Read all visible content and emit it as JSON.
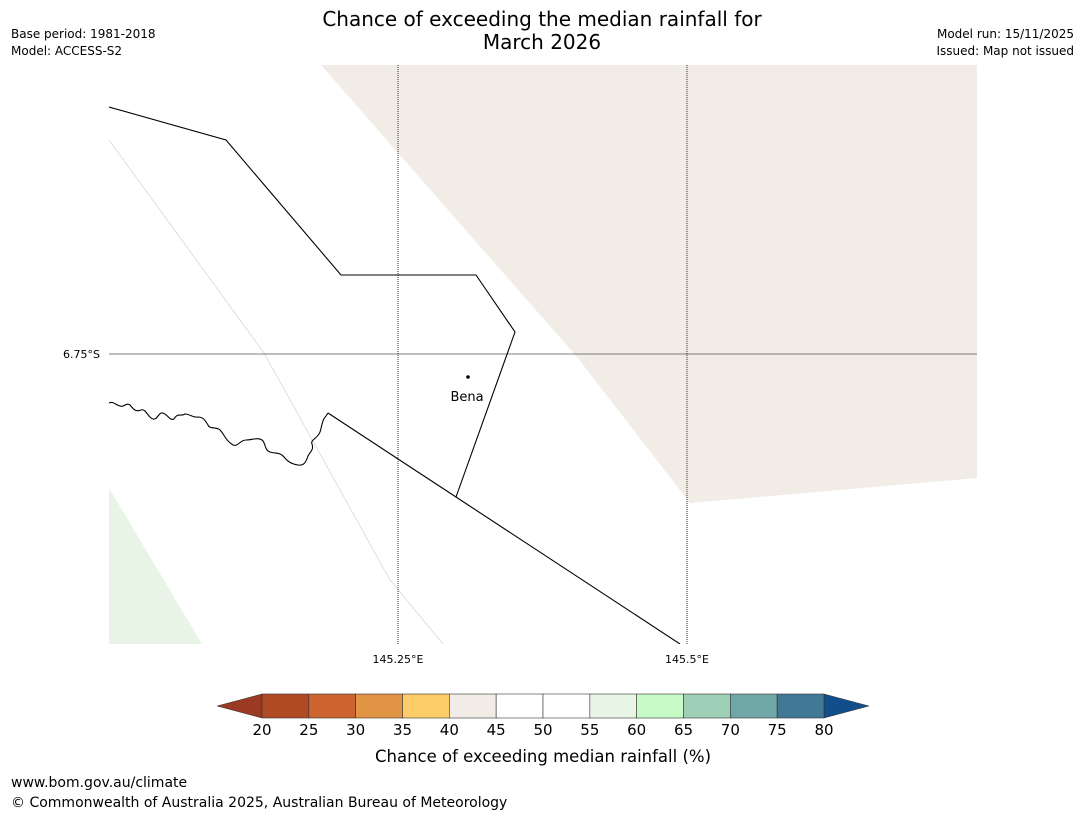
{
  "title": {
    "line1": "Chance of exceeding the median rainfall for",
    "line2": "March 2026"
  },
  "meta_left": {
    "base_period": "Base period: 1981-2018",
    "model": "Model: ACCESS-S2"
  },
  "meta_right": {
    "model_run": "Model run: 15/11/2025",
    "issued": "Issued: Map not issued"
  },
  "map": {
    "lat_label": "6.75°S",
    "lon_labels": [
      "145.25°E",
      "145.5°E"
    ],
    "place": "Bena",
    "colors": {
      "region_40_45": "#f1ece6",
      "region_55_60": "#e8f4e6",
      "boundary": "#000000",
      "graticule": "#000000"
    }
  },
  "colorbar": {
    "ticks": [
      "20",
      "25",
      "30",
      "35",
      "40",
      "45",
      "50",
      "55",
      "60",
      "65",
      "70",
      "75",
      "80"
    ],
    "below_color": "#9a3a22",
    "above_color": "#114e8b",
    "bins": [
      {
        "range": "20-25",
        "color": "#b04a25"
      },
      {
        "range": "25-30",
        "color": "#cd6330"
      },
      {
        "range": "30-35",
        "color": "#e19444"
      },
      {
        "range": "35-40",
        "color": "#fdcd6a"
      },
      {
        "range": "40-45",
        "color": "#f1ece6"
      },
      {
        "range": "45-50",
        "color": "#ffffff"
      },
      {
        "range": "50-55",
        "color": "#ffffff"
      },
      {
        "range": "55-60",
        "color": "#e8f4e6"
      },
      {
        "range": "60-65",
        "color": "#c7fac6"
      },
      {
        "range": "65-70",
        "color": "#9ed0b7"
      },
      {
        "range": "70-75",
        "color": "#6fa6a6"
      },
      {
        "range": "75-80",
        "color": "#417896"
      }
    ],
    "label": "Chance of exceeding median rainfall (%)"
  },
  "footer": {
    "url": "www.bom.gov.au/climate",
    "copyright": "© Commonwealth of Australia 2025, Australian Bureau of Meteorology"
  }
}
